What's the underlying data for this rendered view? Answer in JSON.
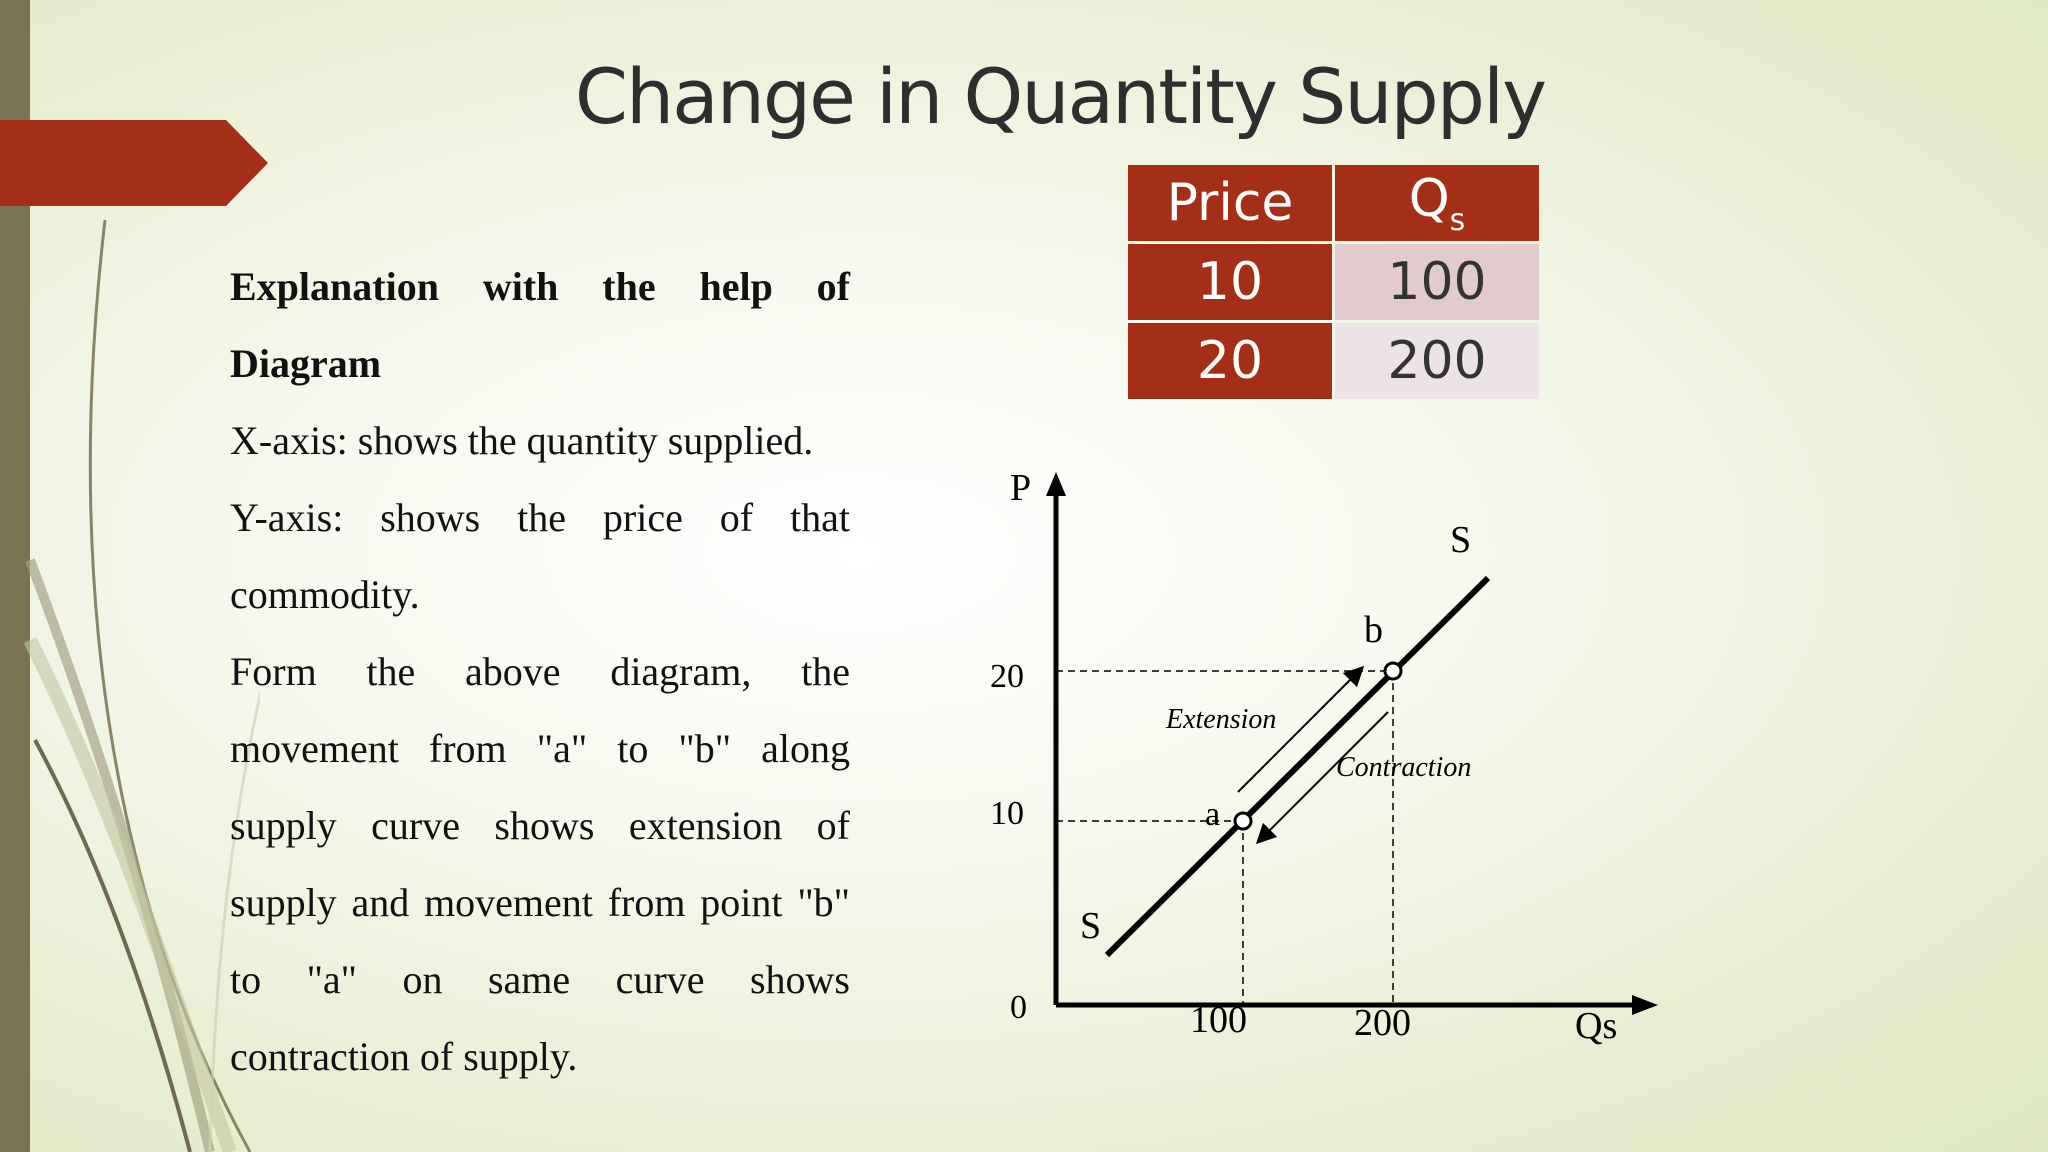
{
  "slide": {
    "title": "Change in Quantity Supply",
    "accent_color": "#a52f16"
  },
  "body": {
    "heading": "Explanation with the help of Diagram",
    "lines": [
      "X-axis: shows the quantity supplied.",
      "Y-axis: shows the price of that commodity.",
      "Form the above diagram, the movement from \"a\" to \"b\" along supply curve shows extension of supply and movement from point \"b\" to \"a\" on same curve shows contraction of supply."
    ]
  },
  "table": {
    "headers": {
      "price": "Price",
      "qs_main": "Q",
      "qs_sub": "s"
    },
    "rows": [
      {
        "price": "10",
        "qs": "100"
      },
      {
        "price": "20",
        "qs": "200"
      }
    ]
  },
  "diagram": {
    "y_axis_label": "P",
    "x_axis_label": "Qs",
    "origin_label": "0",
    "y_ticks": [
      "20",
      "10"
    ],
    "x_ticks": [
      "100",
      "200"
    ],
    "curve_label_top": "S",
    "curve_label_bottom": "S",
    "point_a": "a",
    "point_b": "b",
    "extension_label": "Extension",
    "contraction_label": "Contraction"
  }
}
